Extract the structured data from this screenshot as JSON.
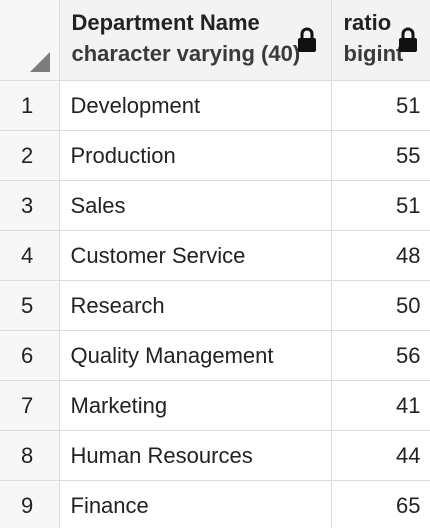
{
  "columns": {
    "name": {
      "title": "Department Name",
      "type": "character varying (40)",
      "icon": "lock-icon"
    },
    "ratio": {
      "title": "ratio",
      "type": "bigint",
      "icon": "lock-icon"
    }
  },
  "rows": [
    {
      "num": "1",
      "name": "Development",
      "ratio": "51"
    },
    {
      "num": "2",
      "name": "Production",
      "ratio": "55"
    },
    {
      "num": "3",
      "name": "Sales",
      "ratio": "51"
    },
    {
      "num": "4",
      "name": "Customer Service",
      "ratio": "48"
    },
    {
      "num": "5",
      "name": "Research",
      "ratio": "50"
    },
    {
      "num": "6",
      "name": "Quality Management",
      "ratio": "56"
    },
    {
      "num": "7",
      "name": "Marketing",
      "ratio": "41"
    },
    {
      "num": "8",
      "name": "Human Resources",
      "ratio": "44"
    },
    {
      "num": "9",
      "name": "Finance",
      "ratio": "65"
    }
  ]
}
